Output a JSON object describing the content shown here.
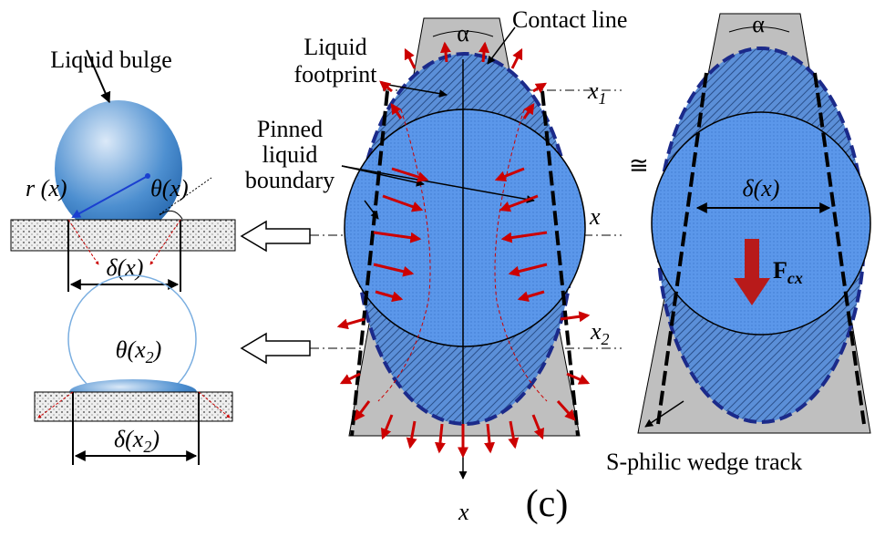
{
  "left_panel": {
    "bulge_label": "Liquid bulge",
    "radius_label": "r (x)",
    "angle_label": "θ(x)",
    "width_label": "δ(x)",
    "angle2_label": {
      "main": "θ(x",
      "sub": "2",
      "tail": ")"
    },
    "width2_label": {
      "main": "δ(x",
      "sub": "2",
      "tail": ")"
    }
  },
  "middle_panel": {
    "alpha": "α",
    "contact_line": "Contact line",
    "footprint": [
      "Liquid",
      "footprint"
    ],
    "pinned": [
      "Pinned",
      "liquid",
      "boundary"
    ],
    "x1": {
      "main": "x",
      "sub": "1"
    },
    "x": "x",
    "x2": {
      "main": "x",
      "sub": "2"
    },
    "axis": "x"
  },
  "approx": "≅",
  "right_panel": {
    "alpha": "α",
    "width_label": "δ(x)",
    "force": {
      "main": "F",
      "sub": "cx"
    },
    "track": "S-philic wedge track"
  },
  "caption": "(c)"
}
